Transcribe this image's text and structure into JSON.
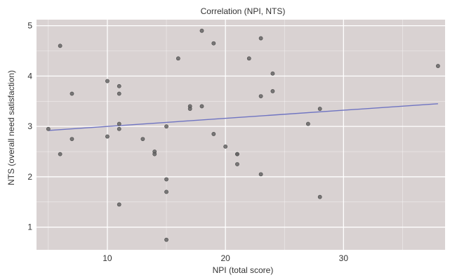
{
  "chart_data": {
    "type": "scatter",
    "title": "Correlation (NPI, NTS)",
    "xlabel": "NPI (total score)",
    "ylabel": "NTS (overall need satisfaction)",
    "xlim": [
      4,
      38.6
    ],
    "ylim": [
      0.55,
      5.12
    ],
    "x_ticks": [
      10,
      20,
      30
    ],
    "y_ticks": [
      1,
      2,
      3,
      4,
      5
    ],
    "grid": true,
    "colors": {
      "panel": "#d9d2d2",
      "grid": "#ffffff",
      "point": "#666666",
      "fit_line": "#6f74c2"
    },
    "points": [
      {
        "x": 5,
        "y": 2.95
      },
      {
        "x": 6,
        "y": 4.6
      },
      {
        "x": 6,
        "y": 2.45
      },
      {
        "x": 7,
        "y": 3.65
      },
      {
        "x": 7,
        "y": 2.75
      },
      {
        "x": 10,
        "y": 3.9
      },
      {
        "x": 10,
        "y": 2.8
      },
      {
        "x": 11,
        "y": 3.8
      },
      {
        "x": 11,
        "y": 3.65
      },
      {
        "x": 11,
        "y": 3.05
      },
      {
        "x": 11,
        "y": 2.95
      },
      {
        "x": 11,
        "y": 1.45
      },
      {
        "x": 13,
        "y": 2.75
      },
      {
        "x": 14,
        "y": 2.5
      },
      {
        "x": 14,
        "y": 2.45
      },
      {
        "x": 15,
        "y": 3.0
      },
      {
        "x": 15,
        "y": 1.95
      },
      {
        "x": 15,
        "y": 1.7
      },
      {
        "x": 15,
        "y": 0.75
      },
      {
        "x": 16,
        "y": 4.35
      },
      {
        "x": 17,
        "y": 3.4
      },
      {
        "x": 17,
        "y": 3.35
      },
      {
        "x": 18,
        "y": 4.9
      },
      {
        "x": 18,
        "y": 3.4
      },
      {
        "x": 19,
        "y": 4.65
      },
      {
        "x": 19,
        "y": 2.85
      },
      {
        "x": 20,
        "y": 2.6
      },
      {
        "x": 21,
        "y": 2.45
      },
      {
        "x": 21,
        "y": 2.45
      },
      {
        "x": 21,
        "y": 2.25
      },
      {
        "x": 22,
        "y": 4.35
      },
      {
        "x": 23,
        "y": 4.75
      },
      {
        "x": 23,
        "y": 3.6
      },
      {
        "x": 23,
        "y": 2.05
      },
      {
        "x": 24,
        "y": 4.05
      },
      {
        "x": 24,
        "y": 3.7
      },
      {
        "x": 27,
        "y": 3.05
      },
      {
        "x": 28,
        "y": 3.35
      },
      {
        "x": 28,
        "y": 1.6
      },
      {
        "x": 38,
        "y": 4.2
      }
    ],
    "fit_line": {
      "x": [
        5,
        38
      ],
      "y": [
        2.92,
        3.45
      ]
    }
  }
}
